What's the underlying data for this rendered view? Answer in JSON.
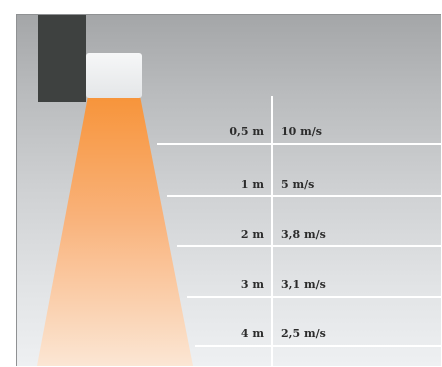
{
  "rows": [
    {
      "distance": "0,5 m",
      "speed": "10 m/s"
    },
    {
      "distance": "1 m",
      "speed": "5 m/s"
    },
    {
      "distance": "2 m",
      "speed": "3,8 m/s"
    },
    {
      "distance": "3 m",
      "speed": "3,1 m/s"
    },
    {
      "distance": "4 m",
      "speed": "2,5 m/s"
    }
  ],
  "colors": {
    "beam_top": "#f7943a",
    "beam_bottom": "#fbe6d4",
    "wall": "#3e4140",
    "fixture": "#f2f3f4",
    "lines": "#ffffff",
    "text": "#2c2c2c"
  },
  "icons": [
    "wall-block",
    "air-curtain-unit",
    "airflow-beam"
  ]
}
